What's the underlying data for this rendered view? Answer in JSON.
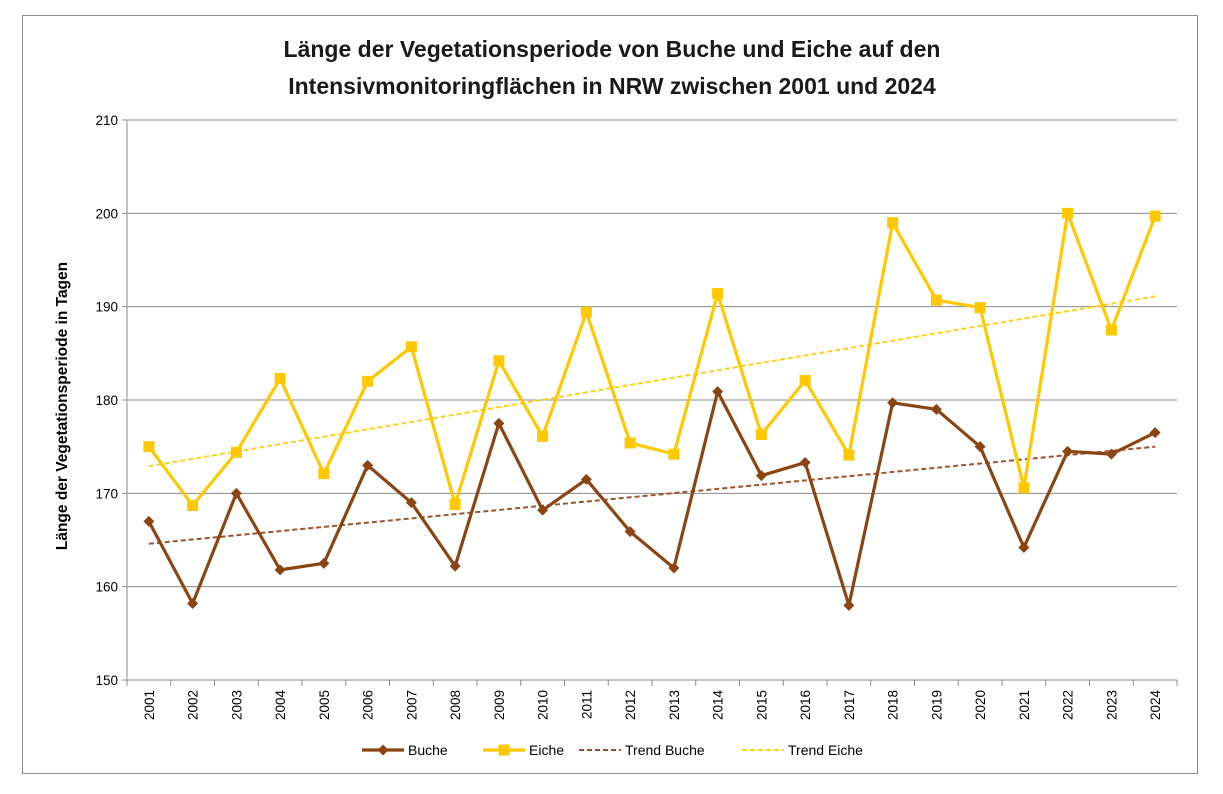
{
  "chart_data": {
    "type": "line",
    "title_lines": [
      "Länge der Vegetationsperiode von Buche und Eiche auf den",
      "Intensivmonitoringflächen in NRW zwischen 2001 und 2024"
    ],
    "xlabel": "",
    "ylabel": "Länge der Vegetationsperiode in Tagen",
    "categories": [
      "2001",
      "2002",
      "2003",
      "2004",
      "2005",
      "2006",
      "2007",
      "2008",
      "2009",
      "2010",
      "2011",
      "2012",
      "2013",
      "2014",
      "2015",
      "2016",
      "2017",
      "2018",
      "2019",
      "2020",
      "2021",
      "2022",
      "2023",
      "2024"
    ],
    "ylim": [
      150,
      210
    ],
    "yticks": [
      150,
      160,
      170,
      180,
      190,
      200,
      210
    ],
    "grid": true,
    "legend_position": "bottom",
    "series": [
      {
        "name": "Buche",
        "color": "#8b4513",
        "marker": "diamond",
        "values": [
          167.0,
          158.2,
          170.0,
          161.8,
          162.5,
          173.0,
          169.0,
          162.2,
          177.5,
          168.2,
          171.5,
          165.9,
          162.0,
          180.9,
          171.9,
          173.3,
          158.0,
          179.7,
          179.0,
          175.0,
          164.2,
          174.5,
          174.2,
          176.5
        ]
      },
      {
        "name": "Eiche",
        "color": "#ffc800",
        "marker": "square",
        "values": [
          175.0,
          168.7,
          174.4,
          182.3,
          172.1,
          182.0,
          185.7,
          168.8,
          184.2,
          176.1,
          189.4,
          175.4,
          174.2,
          191.4,
          176.3,
          182.1,
          174.1,
          199.0,
          190.7,
          189.9,
          170.6,
          200.0,
          187.5,
          199.7
        ]
      }
    ],
    "trendlines": [
      {
        "name": "Trend Buche",
        "color": "#a0522d",
        "start": 164.6,
        "end": 175.0
      },
      {
        "name": "Trend Eiche",
        "color": "#ffd21a",
        "start": 172.9,
        "end": 191.1
      }
    ]
  }
}
